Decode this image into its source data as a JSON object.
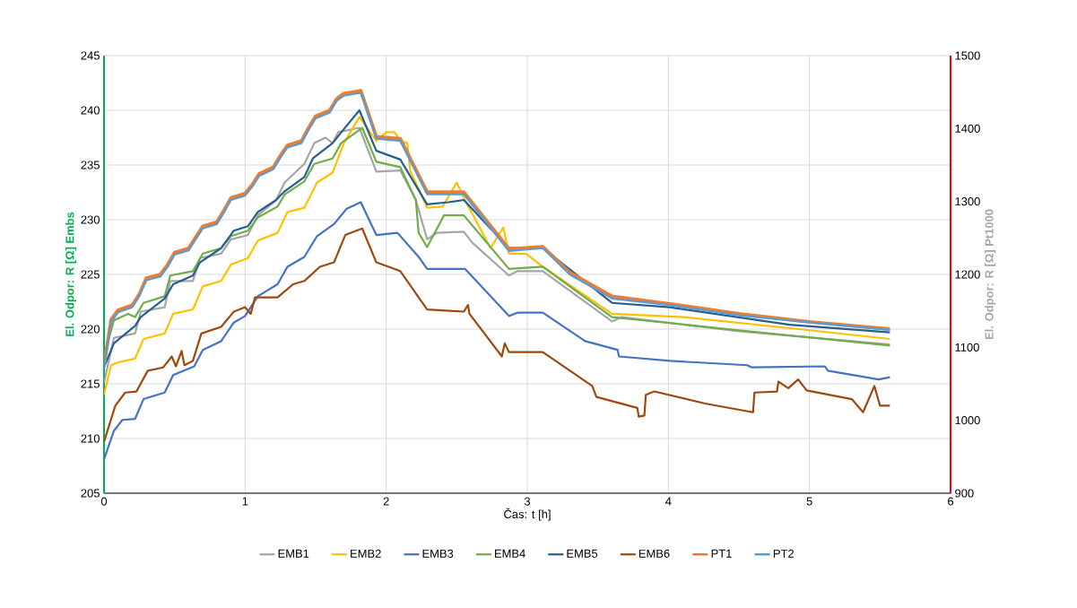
{
  "chart_data": {
    "type": "line",
    "xlabel": "Čas: t [h]",
    "ylabel": "El. Odpor: R [Ω] Embs",
    "y2label": "El. Odpor: R [Ω] Pt1000",
    "xlim": [
      0,
      6
    ],
    "xticks": [
      0,
      1,
      2,
      3,
      4,
      5,
      6
    ],
    "ylim": [
      205,
      245
    ],
    "yticks": [
      205,
      210,
      215,
      220,
      225,
      230,
      235,
      240,
      245
    ],
    "y2lim": [
      900,
      1500
    ],
    "y2ticks": [
      900,
      1000,
      1100,
      1200,
      1300,
      1400,
      1500
    ],
    "grid": true,
    "legend": "bottom",
    "series": [
      {
        "name": "EMB1",
        "color": "#a5a5a5",
        "x": [
          0,
          0.07,
          0.22,
          0.26,
          0.43,
          0.47,
          0.63,
          0.68,
          0.83,
          0.9,
          1.02,
          1.09,
          1.22,
          1.28,
          1.42,
          1.49,
          1.57,
          1.62,
          1.66,
          1.81,
          1.93,
          2.1,
          2.21,
          2.29,
          2.36,
          2.55,
          2.61,
          2.87,
          2.93,
          3.11,
          3.6,
          3.67,
          4.5,
          5.57
        ],
        "values": [
          215.1,
          219.2,
          219.6,
          221.6,
          222.0,
          224.4,
          224.4,
          226.5,
          226.9,
          228.2,
          228.6,
          230.4,
          231.8,
          233.4,
          235.1,
          237.0,
          237.5,
          237.0,
          238.0,
          238.4,
          234.4,
          234.5,
          231.8,
          228.2,
          228.8,
          228.9,
          227.9,
          224.9,
          225.3,
          225.3,
          220.7,
          221.1,
          219.8,
          218.6
        ]
      },
      {
        "name": "EMB2",
        "color": "#ffc000",
        "x": [
          0,
          0.05,
          0.11,
          0.22,
          0.28,
          0.43,
          0.49,
          0.63,
          0.7,
          0.83,
          0.9,
          1.02,
          1.09,
          1.23,
          1.3,
          1.42,
          1.51,
          1.62,
          1.7,
          1.81,
          1.93,
          2.0,
          2.06,
          2.1,
          2.15,
          2.17,
          2.29,
          2.4,
          2.5,
          2.55,
          2.74,
          2.83,
          2.87,
          2.99,
          3.11,
          3.6,
          4.11,
          5.0,
          5.57
        ],
        "values": [
          214.0,
          216.7,
          217.0,
          217.3,
          219.1,
          219.6,
          221.4,
          221.8,
          223.9,
          224.4,
          225.9,
          226.5,
          228.1,
          228.8,
          230.7,
          231.1,
          233.4,
          234.3,
          237.0,
          239.4,
          237.2,
          238.0,
          238.0,
          237.2,
          237.0,
          234.5,
          231.1,
          231.2,
          233.4,
          232.0,
          227.4,
          229.3,
          226.9,
          226.9,
          225.7,
          221.4,
          221.1,
          219.9,
          219.1
        ]
      },
      {
        "name": "EMB3",
        "color": "#4472c4",
        "x": [
          0,
          0.07,
          0.13,
          0.22,
          0.28,
          0.43,
          0.49,
          0.64,
          0.7,
          0.83,
          0.92,
          1.0,
          1.09,
          1.23,
          1.3,
          1.42,
          1.51,
          1.63,
          1.72,
          1.82,
          1.93,
          2.08,
          2.23,
          2.29,
          2.56,
          2.87,
          2.93,
          3.11,
          3.41,
          3.64,
          3.65,
          4.01,
          4.56,
          4.59,
          5.11,
          5.13,
          5.49,
          5.57
        ],
        "values": [
          208.1,
          210.7,
          211.7,
          211.8,
          213.6,
          214.2,
          215.8,
          216.6,
          218.1,
          218.9,
          220.6,
          221.2,
          223.0,
          224.1,
          225.7,
          226.6,
          228.5,
          229.6,
          231.0,
          231.6,
          228.6,
          228.8,
          226.6,
          225.5,
          225.5,
          221.2,
          221.5,
          221.5,
          218.9,
          218.1,
          217.5,
          217.1,
          216.7,
          216.5,
          216.6,
          216.2,
          215.4,
          215.6
        ]
      },
      {
        "name": "EMB4",
        "color": "#70ad47",
        "x": [
          0,
          0.07,
          0.17,
          0.22,
          0.28,
          0.43,
          0.47,
          0.63,
          0.7,
          0.83,
          0.9,
          1.02,
          1.09,
          1.23,
          1.28,
          1.42,
          1.49,
          1.62,
          1.68,
          1.83,
          1.93,
          2.1,
          2.21,
          2.23,
          2.29,
          2.41,
          2.55,
          2.87,
          3.11,
          3.6,
          4.5,
          5.57
        ],
        "values": [
          217.5,
          220.8,
          221.4,
          221.1,
          222.4,
          223.0,
          224.9,
          225.3,
          226.9,
          227.4,
          228.5,
          229.0,
          230.2,
          231.2,
          232.3,
          233.5,
          235.1,
          235.6,
          237.0,
          238.4,
          235.3,
          234.8,
          231.8,
          228.8,
          227.5,
          230.4,
          230.4,
          225.5,
          225.7,
          221.1,
          219.9,
          218.5
        ]
      },
      {
        "name": "EMB5",
        "color": "#255e91",
        "x": [
          0,
          0.07,
          0.22,
          0.26,
          0.43,
          0.49,
          0.63,
          0.68,
          0.83,
          0.92,
          1.02,
          1.09,
          1.22,
          1.28,
          1.42,
          1.48,
          1.62,
          1.72,
          1.81,
          1.93,
          2.1,
          2.29,
          2.44,
          2.55,
          2.87,
          3.11,
          3.6,
          4.01,
          4.86,
          5.57
        ],
        "values": [
          216.5,
          218.7,
          220.3,
          221.1,
          222.8,
          224.1,
          224.9,
          226.1,
          227.4,
          229.0,
          229.4,
          230.7,
          231.8,
          232.6,
          233.9,
          235.6,
          237.0,
          238.6,
          240.0,
          236.3,
          235.5,
          231.4,
          231.6,
          231.8,
          227.4,
          227.4,
          222.4,
          222.0,
          220.4,
          219.7
        ]
      },
      {
        "name": "EMB6",
        "color": "#9e480e",
        "x": [
          0,
          0.08,
          0.15,
          0.23,
          0.31,
          0.42,
          0.48,
          0.51,
          0.55,
          0.57,
          0.63,
          0.69,
          0.83,
          0.92,
          1.0,
          1.04,
          1.07,
          1.23,
          1.34,
          1.42,
          1.53,
          1.63,
          1.71,
          1.83,
          1.93,
          2.1,
          2.29,
          2.55,
          2.58,
          2.59,
          2.82,
          2.84,
          2.87,
          3.11,
          3.46,
          3.49,
          3.78,
          3.79,
          3.83,
          3.84,
          3.9,
          4.26,
          4.6,
          4.61,
          4.77,
          4.78,
          4.85,
          4.92,
          4.98,
          5.3,
          5.38,
          5.46,
          5.5,
          5.57
        ],
        "values": [
          209.7,
          213.0,
          214.2,
          214.3,
          216.2,
          216.5,
          217.5,
          216.6,
          218.0,
          216.7,
          217.1,
          219.6,
          220.2,
          221.6,
          222.0,
          221.4,
          222.9,
          222.9,
          224.1,
          224.4,
          225.7,
          226.1,
          228.6,
          229.2,
          226.1,
          225.3,
          221.8,
          221.6,
          222.2,
          221.4,
          217.5,
          218.7,
          217.9,
          217.9,
          214.8,
          213.8,
          212.8,
          212.0,
          212.1,
          214.0,
          214.3,
          213.2,
          212.4,
          214.2,
          214.3,
          215.2,
          214.6,
          215.4,
          214.4,
          213.6,
          212.4,
          214.8,
          213.0,
          213.0
        ]
      },
      {
        "name": "PT1",
        "color": "#ed7d31",
        "axis": "y2",
        "x": [
          0,
          0.05,
          0.1,
          0.2,
          0.25,
          0.3,
          0.4,
          0.45,
          0.5,
          0.6,
          0.65,
          0.7,
          0.8,
          0.85,
          0.9,
          1.0,
          1.05,
          1.1,
          1.2,
          1.25,
          1.3,
          1.4,
          1.45,
          1.5,
          1.6,
          1.65,
          1.7,
          1.82,
          1.93,
          2.1,
          2.29,
          2.55,
          2.87,
          3.11,
          3.3,
          3.6,
          4.0,
          4.5,
          5.0,
          5.57
        ],
        "values": [
          1075,
          1138,
          1151,
          1158,
          1173,
          1195,
          1200,
          1213,
          1230,
          1236,
          1251,
          1266,
          1272,
          1288,
          1305,
          1311,
          1323,
          1338,
          1347,
          1363,
          1377,
          1383,
          1401,
          1417,
          1425,
          1441,
          1448,
          1452,
          1389,
          1386,
          1313,
          1313,
          1235,
          1238,
          1203,
          1170,
          1160,
          1146,
          1135,
          1125
        ]
      },
      {
        "name": "PT2",
        "color": "#5b9bd5",
        "axis": "y2",
        "x": [
          0,
          0.05,
          0.1,
          0.2,
          0.25,
          0.3,
          0.4,
          0.45,
          0.5,
          0.6,
          0.65,
          0.7,
          0.8,
          0.85,
          0.9,
          1.0,
          1.05,
          1.1,
          1.2,
          1.25,
          1.3,
          1.4,
          1.45,
          1.5,
          1.6,
          1.65,
          1.7,
          1.82,
          1.93,
          2.1,
          2.29,
          2.55,
          2.87,
          3.11,
          3.3,
          3.6,
          4.0,
          4.5,
          5.0,
          5.57
        ],
        "values": [
          1072,
          1135,
          1148,
          1155,
          1170,
          1192,
          1197,
          1210,
          1227,
          1233,
          1248,
          1263,
          1269,
          1285,
          1302,
          1308,
          1320,
          1335,
          1344,
          1360,
          1374,
          1380,
          1398,
          1414,
          1422,
          1438,
          1445,
          1449,
          1386,
          1383,
          1310,
          1310,
          1232,
          1236,
          1200,
          1167,
          1158,
          1144,
          1134,
          1124
        ]
      }
    ]
  }
}
